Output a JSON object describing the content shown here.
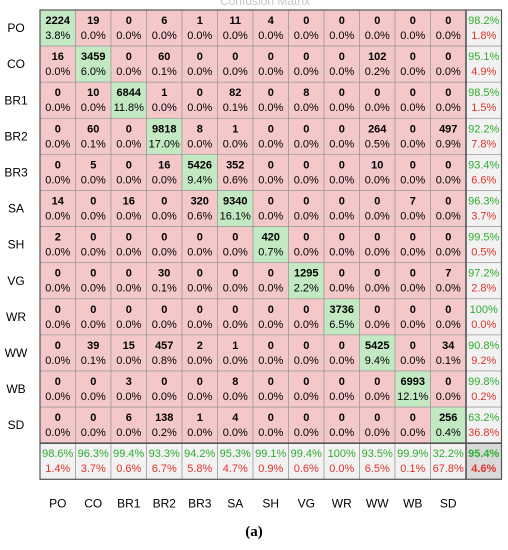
{
  "title": "Confusion Matrix",
  "caption": "(a)",
  "colors": {
    "correct": "#c3e9c3",
    "error": "#f4c8c8",
    "summary": "#f2f2f2",
    "total": "#d9d9d9",
    "pct_good": "#2fae2f",
    "pct_bad": "#e0342d",
    "border": "#9a9a9a",
    "text": "#000000"
  },
  "chart_data": {
    "type": "heatmap",
    "row_labels": [
      "PO",
      "CO",
      "BR1",
      "BR2",
      "BR3",
      "SA",
      "SH",
      "VG",
      "WR",
      "WW",
      "WB",
      "SD"
    ],
    "col_labels": [
      "PO",
      "CO",
      "BR1",
      "BR2",
      "BR3",
      "SA",
      "SH",
      "VG",
      "WR",
      "WW",
      "WB",
      "SD"
    ],
    "cells": [
      [
        {
          "count": "2224",
          "pct": "3.8%"
        },
        {
          "count": "19",
          "pct": "0.0%"
        },
        {
          "count": "0",
          "pct": "0.0%"
        },
        {
          "count": "6",
          "pct": "0.0%"
        },
        {
          "count": "1",
          "pct": "0.0%"
        },
        {
          "count": "11",
          "pct": "0.0%"
        },
        {
          "count": "4",
          "pct": "0.0%"
        },
        {
          "count": "0",
          "pct": "0.0%"
        },
        {
          "count": "0",
          "pct": "0.0%"
        },
        {
          "count": "0",
          "pct": "0.0%"
        },
        {
          "count": "0",
          "pct": "0.0%"
        },
        {
          "count": "0",
          "pct": "0.0%"
        }
      ],
      [
        {
          "count": "16",
          "pct": "0.0%"
        },
        {
          "count": "3459",
          "pct": "6.0%"
        },
        {
          "count": "0",
          "pct": "0.0%"
        },
        {
          "count": "60",
          "pct": "0.1%"
        },
        {
          "count": "0",
          "pct": "0.0%"
        },
        {
          "count": "0",
          "pct": "0.0%"
        },
        {
          "count": "0",
          "pct": "0.0%"
        },
        {
          "count": "0",
          "pct": "0.0%"
        },
        {
          "count": "0",
          "pct": "0.0%"
        },
        {
          "count": "102",
          "pct": "0.2%"
        },
        {
          "count": "0",
          "pct": "0.0%"
        },
        {
          "count": "0",
          "pct": "0.0%"
        }
      ],
      [
        {
          "count": "0",
          "pct": "0.0%"
        },
        {
          "count": "10",
          "pct": "0.0%"
        },
        {
          "count": "6844",
          "pct": "11.8%"
        },
        {
          "count": "1",
          "pct": "0.0%"
        },
        {
          "count": "0",
          "pct": "0.0%"
        },
        {
          "count": "82",
          "pct": "0.1%"
        },
        {
          "count": "0",
          "pct": "0.0%"
        },
        {
          "count": "8",
          "pct": "0.0%"
        },
        {
          "count": "0",
          "pct": "0.0%"
        },
        {
          "count": "0",
          "pct": "0.0%"
        },
        {
          "count": "0",
          "pct": "0.0%"
        },
        {
          "count": "0",
          "pct": "0.0%"
        }
      ],
      [
        {
          "count": "0",
          "pct": "0.0%"
        },
        {
          "count": "60",
          "pct": "0.1%"
        },
        {
          "count": "0",
          "pct": "0.0%"
        },
        {
          "count": "9818",
          "pct": "17.0%"
        },
        {
          "count": "8",
          "pct": "0.0%"
        },
        {
          "count": "1",
          "pct": "0.0%"
        },
        {
          "count": "0",
          "pct": "0.0%"
        },
        {
          "count": "0",
          "pct": "0.0%"
        },
        {
          "count": "0",
          "pct": "0.0%"
        },
        {
          "count": "264",
          "pct": "0.5%"
        },
        {
          "count": "0",
          "pct": "0.0%"
        },
        {
          "count": "497",
          "pct": "0.9%"
        }
      ],
      [
        {
          "count": "0",
          "pct": "0.0%"
        },
        {
          "count": "5",
          "pct": "0.0%"
        },
        {
          "count": "0",
          "pct": "0.0%"
        },
        {
          "count": "16",
          "pct": "0.0%"
        },
        {
          "count": "5426",
          "pct": "9.4%"
        },
        {
          "count": "352",
          "pct": "0.6%"
        },
        {
          "count": "0",
          "pct": "0.0%"
        },
        {
          "count": "0",
          "pct": "0.0%"
        },
        {
          "count": "0",
          "pct": "0.0%"
        },
        {
          "count": "10",
          "pct": "0.0%"
        },
        {
          "count": "0",
          "pct": "0.0%"
        },
        {
          "count": "0",
          "pct": "0.0%"
        }
      ],
      [
        {
          "count": "14",
          "pct": "0.0%"
        },
        {
          "count": "0",
          "pct": "0.0%"
        },
        {
          "count": "16",
          "pct": "0.0%"
        },
        {
          "count": "0",
          "pct": "0.0%"
        },
        {
          "count": "320",
          "pct": "0.6%"
        },
        {
          "count": "9340",
          "pct": "16.1%"
        },
        {
          "count": "0",
          "pct": "0.0%"
        },
        {
          "count": "0",
          "pct": "0.0%"
        },
        {
          "count": "0",
          "pct": "0.0%"
        },
        {
          "count": "0",
          "pct": "0.0%"
        },
        {
          "count": "7",
          "pct": "0.0%"
        },
        {
          "count": "0",
          "pct": "0.0%"
        }
      ],
      [
        {
          "count": "2",
          "pct": "0.0%"
        },
        {
          "count": "0",
          "pct": "0.0%"
        },
        {
          "count": "0",
          "pct": "0.0%"
        },
        {
          "count": "0",
          "pct": "0.0%"
        },
        {
          "count": "0",
          "pct": "0.0%"
        },
        {
          "count": "0",
          "pct": "0.0%"
        },
        {
          "count": "420",
          "pct": "0.7%"
        },
        {
          "count": "0",
          "pct": "0.0%"
        },
        {
          "count": "0",
          "pct": "0.0%"
        },
        {
          "count": "0",
          "pct": "0.0%"
        },
        {
          "count": "0",
          "pct": "0.0%"
        },
        {
          "count": "0",
          "pct": "0.0%"
        }
      ],
      [
        {
          "count": "0",
          "pct": "0.0%"
        },
        {
          "count": "0",
          "pct": "0.0%"
        },
        {
          "count": "0",
          "pct": "0.0%"
        },
        {
          "count": "30",
          "pct": "0.1%"
        },
        {
          "count": "0",
          "pct": "0.0%"
        },
        {
          "count": "0",
          "pct": "0.0%"
        },
        {
          "count": "0",
          "pct": "0.0%"
        },
        {
          "count": "1295",
          "pct": "2.2%"
        },
        {
          "count": "0",
          "pct": "0.0%"
        },
        {
          "count": "0",
          "pct": "0.0%"
        },
        {
          "count": "0",
          "pct": "0.0%"
        },
        {
          "count": "7",
          "pct": "0.0%"
        }
      ],
      [
        {
          "count": "0",
          "pct": "0.0%"
        },
        {
          "count": "0",
          "pct": "0.0%"
        },
        {
          "count": "0",
          "pct": "0.0%"
        },
        {
          "count": "0",
          "pct": "0.0%"
        },
        {
          "count": "0",
          "pct": "0.0%"
        },
        {
          "count": "0",
          "pct": "0.0%"
        },
        {
          "count": "0",
          "pct": "0.0%"
        },
        {
          "count": "0",
          "pct": "0.0%"
        },
        {
          "count": "3736",
          "pct": "6.5%"
        },
        {
          "count": "0",
          "pct": "0.0%"
        },
        {
          "count": "0",
          "pct": "0.0%"
        },
        {
          "count": "0",
          "pct": "0.0%"
        }
      ],
      [
        {
          "count": "0",
          "pct": "0.0%"
        },
        {
          "count": "39",
          "pct": "0.1%"
        },
        {
          "count": "15",
          "pct": "0.0%"
        },
        {
          "count": "457",
          "pct": "0.8%"
        },
        {
          "count": "2",
          "pct": "0.0%"
        },
        {
          "count": "1",
          "pct": "0.0%"
        },
        {
          "count": "0",
          "pct": "0.0%"
        },
        {
          "count": "0",
          "pct": "0.0%"
        },
        {
          "count": "0",
          "pct": "0.0%"
        },
        {
          "count": "5425",
          "pct": "9.4%"
        },
        {
          "count": "0",
          "pct": "0.0%"
        },
        {
          "count": "34",
          "pct": "0.1%"
        }
      ],
      [
        {
          "count": "0",
          "pct": "0.0%"
        },
        {
          "count": "0",
          "pct": "0.0%"
        },
        {
          "count": "3",
          "pct": "0.0%"
        },
        {
          "count": "0",
          "pct": "0.0%"
        },
        {
          "count": "0",
          "pct": "0.0%"
        },
        {
          "count": "8",
          "pct": "0.0%"
        },
        {
          "count": "0",
          "pct": "0.0%"
        },
        {
          "count": "0",
          "pct": "0.0%"
        },
        {
          "count": "0",
          "pct": "0.0%"
        },
        {
          "count": "0",
          "pct": "0.0%"
        },
        {
          "count": "6993",
          "pct": "12.1%"
        },
        {
          "count": "0",
          "pct": "0.0%"
        }
      ],
      [
        {
          "count": "0",
          "pct": "0.0%"
        },
        {
          "count": "0",
          "pct": "0.0%"
        },
        {
          "count": "6",
          "pct": "0.0%"
        },
        {
          "count": "138",
          "pct": "0.2%"
        },
        {
          "count": "1",
          "pct": "0.0%"
        },
        {
          "count": "4",
          "pct": "0.0%"
        },
        {
          "count": "0",
          "pct": "0.0%"
        },
        {
          "count": "0",
          "pct": "0.0%"
        },
        {
          "count": "0",
          "pct": "0.0%"
        },
        {
          "count": "0",
          "pct": "0.0%"
        },
        {
          "count": "0",
          "pct": "0.0%"
        },
        {
          "count": "256",
          "pct": "0.4%"
        }
      ]
    ],
    "row_summary": [
      {
        "good": "98.2%",
        "bad": "1.8%"
      },
      {
        "good": "95.1%",
        "bad": "4.9%"
      },
      {
        "good": "98.5%",
        "bad": "1.5%"
      },
      {
        "good": "92.2%",
        "bad": "7.8%"
      },
      {
        "good": "93.4%",
        "bad": "6.6%"
      },
      {
        "good": "96.3%",
        "bad": "3.7%"
      },
      {
        "good": "99.5%",
        "bad": "0.5%"
      },
      {
        "good": "97.2%",
        "bad": "2.8%"
      },
      {
        "good": "100%",
        "bad": "0.0%"
      },
      {
        "good": "90.8%",
        "bad": "9.2%"
      },
      {
        "good": "99.8%",
        "bad": "0.2%"
      },
      {
        "good": "63.2%",
        "bad": "36.8%"
      }
    ],
    "col_summary": [
      {
        "good": "98.6%",
        "bad": "1.4%"
      },
      {
        "good": "96.3%",
        "bad": "3.7%"
      },
      {
        "good": "99.4%",
        "bad": "0.6%"
      },
      {
        "good": "93.3%",
        "bad": "6.7%"
      },
      {
        "good": "94.2%",
        "bad": "5.8%"
      },
      {
        "good": "95.3%",
        "bad": "4.7%"
      },
      {
        "good": "99.1%",
        "bad": "0.9%"
      },
      {
        "good": "99.4%",
        "bad": "0.6%"
      },
      {
        "good": "100%",
        "bad": "0.0%"
      },
      {
        "good": "93.5%",
        "bad": "6.5%"
      },
      {
        "good": "99.9%",
        "bad": "0.1%"
      },
      {
        "good": "32.2%",
        "bad": "67.8%"
      }
    ],
    "overall": {
      "good": "95.4%",
      "bad": "4.6%"
    }
  }
}
